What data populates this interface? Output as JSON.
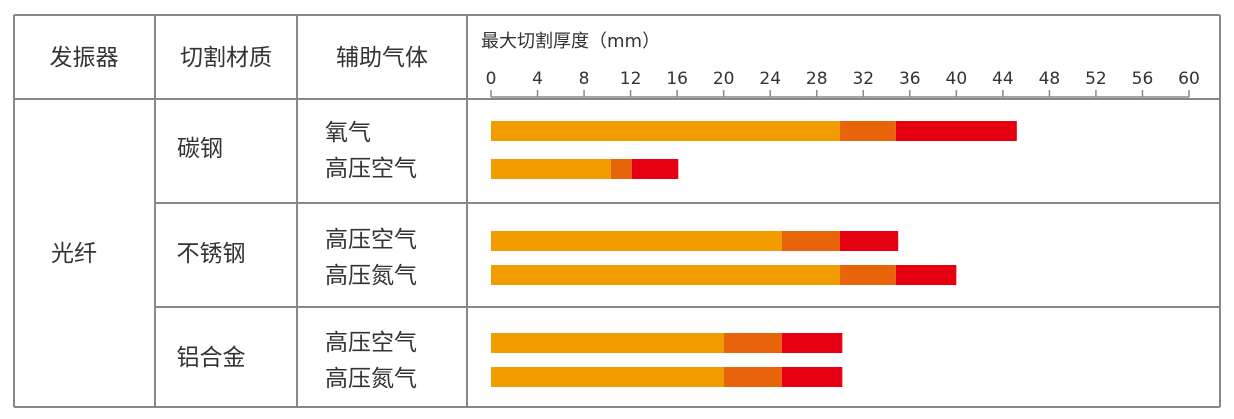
{
  "headers": {
    "oscillator": "发振器",
    "material": "切割材质",
    "gas": "辅助气体"
  },
  "oscillator_value": "光纤",
  "colors": {
    "low": "#f39c00",
    "mid": "#e8640a",
    "high": "#e50012",
    "grid": "#888888"
  },
  "chart_data": {
    "type": "bar",
    "orientation": "horizontal",
    "stacked": true,
    "title": "最大切割厚度（mm）",
    "x_ticks": [
      "0",
      "4",
      "8",
      "12",
      "16",
      "20",
      "24",
      "28",
      "32",
      "36",
      "40",
      "44",
      "48",
      "52",
      "56",
      "60"
    ],
    "xlim": [
      0,
      60
    ],
    "groups": [
      {
        "material": "碳钢",
        "rows": [
          {
            "gas": "氧气",
            "segments": [
              30,
              4.8,
              10.4
            ]
          },
          {
            "gas": "高压空气",
            "segments": [
              10.3,
              1.8,
              4
            ]
          }
        ]
      },
      {
        "material": "不锈钢",
        "rows": [
          {
            "gas": "高压空气",
            "segments": [
              25,
              5,
              5
            ]
          },
          {
            "gas": "高压氮气",
            "segments": [
              30,
              4.8,
              5.2
            ]
          }
        ]
      },
      {
        "material": "铝合金",
        "rows": [
          {
            "gas": "高压空气",
            "segments": [
              20,
              5,
              5.2
            ]
          },
          {
            "gas": "高压氮气",
            "segments": [
              20,
              5,
              5.2
            ]
          }
        ]
      }
    ]
  }
}
